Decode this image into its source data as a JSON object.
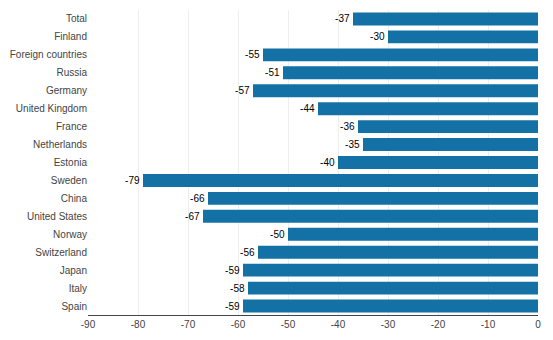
{
  "chart_data": {
    "type": "bar",
    "orientation": "horizontal",
    "categories": [
      "Spain",
      "Italy",
      "Japan",
      "Switzerland",
      "Norway",
      "United States",
      "China",
      "Sweden",
      "Estonia",
      "Netherlands",
      "France",
      "United Kingdom",
      "Germany",
      "Russia",
      "Foreign countries",
      "Finland",
      "Total"
    ],
    "values": [
      -59,
      -58,
      -59,
      -56,
      -50,
      -67,
      -66,
      -79,
      -40,
      -35,
      -36,
      -44,
      -57,
      -51,
      -55,
      -30,
      -37
    ],
    "color": "#1471a5",
    "xlim": [
      -90,
      0
    ],
    "xticks": [
      -90,
      -80,
      -70,
      -60,
      -50,
      -40,
      -30,
      -20,
      -10,
      0
    ],
    "grid": true,
    "data_labels": true
  }
}
